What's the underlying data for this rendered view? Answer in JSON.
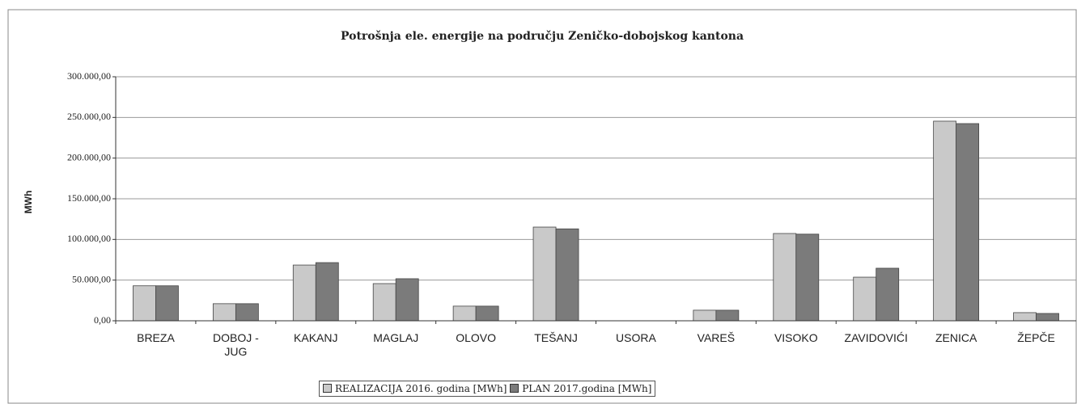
{
  "chart_data": {
    "type": "bar",
    "title": "Potrošnja ele. energije na području Zeničko-dobojskog kantona",
    "y_label": "MWh",
    "categories": [
      "BREZA",
      "DOBOJ - JUG",
      "KAKANJ",
      "MAGLAJ",
      "OLOVO",
      "TEŠANJ",
      "USORA",
      "VAREŠ",
      "VISOKO",
      "ZAVIDOVIĆI",
      "ZENICA",
      "ŽEPČE"
    ],
    "series": [
      {
        "name": "REALIZACIJA 2016. godina [MWh]",
        "color": "#c9c9c9",
        "values": [
          43000,
          21000,
          68500,
          45700,
          18000,
          115200,
          0,
          13000,
          107300,
          53600,
          245400,
          10000
        ]
      },
      {
        "name": "PLAN 2017.godina [MWh]",
        "color": "#7b7b7b",
        "values": [
          43000,
          21000,
          71500,
          51700,
          18000,
          113000,
          0,
          13000,
          106500,
          64600,
          242400,
          9000
        ]
      }
    ],
    "ylim": [
      0,
      300000
    ],
    "yticks": [
      {
        "value": 0,
        "label": "0,00"
      },
      {
        "value": 50000,
        "label": "50.000,00"
      },
      {
        "value": 100000,
        "label": "100.000,00"
      },
      {
        "value": 150000,
        "label": "150.000,00"
      },
      {
        "value": 200000,
        "label": "200.000,00"
      },
      {
        "value": 250000,
        "label": "250.000,00"
      },
      {
        "value": 300000,
        "label": "300.000,00"
      }
    ],
    "grid": true,
    "legend": "bottom"
  }
}
